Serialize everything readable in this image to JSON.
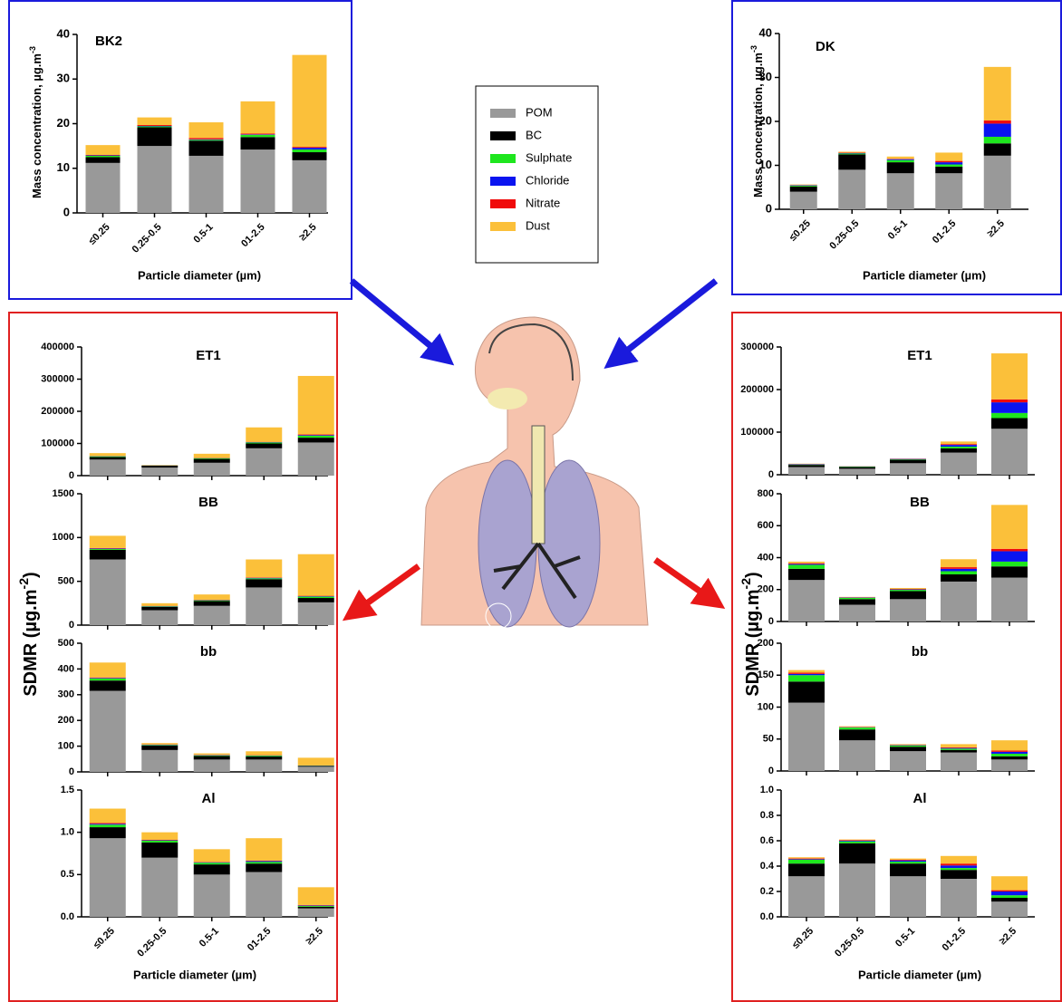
{
  "legend": [
    {
      "name": "POM",
      "color": "#999999"
    },
    {
      "name": "BC",
      "color": "#000000"
    },
    {
      "name": "Sulphate",
      "color": "#1ee61e"
    },
    {
      "name": "Chloride",
      "color": "#0a14f0"
    },
    {
      "name": "Nitrate",
      "color": "#f00a0a"
    },
    {
      "name": "Dust",
      "color": "#fbc03a"
    }
  ],
  "chart_data": [
    {
      "type": "bar",
      "stacked": true,
      "title": "BK2",
      "categories": [
        "≤0.25",
        "0.25-0.5",
        "0.5-1",
        "01-2.5",
        "≥2.5"
      ],
      "x_label": "Particle diameter (µm)",
      "y_label": {
        "text": "Mass concentration, µg.m",
        "sup": "-3"
      },
      "ylim": [
        0,
        40
      ],
      "yticks": [
        0,
        10,
        20,
        30,
        40
      ],
      "series": [
        {
          "values": [
            11.2,
            15,
            12.8,
            14.2,
            11.8
          ]
        },
        {
          "values": [
            1.3,
            4.2,
            3.4,
            2.8,
            1.8
          ]
        },
        {
          "values": [
            0.3,
            0.2,
            0.2,
            0.5,
            0.6
          ]
        },
        {
          "values": [
            0.1,
            0.1,
            0.1,
            0.1,
            0.4
          ]
        },
        {
          "values": [
            0.1,
            0.2,
            0.3,
            0.2,
            0.2
          ]
        },
        {
          "values": [
            2.2,
            1.7,
            3.5,
            7.2,
            20.6
          ]
        }
      ]
    },
    {
      "type": "bar",
      "stacked": true,
      "title": "DK",
      "categories": [
        "≤0.25",
        "0.25-0.5",
        "0.5-1",
        "01-2.5",
        "≥2.5"
      ],
      "x_label": "Particle diameter (µm)",
      "y_label": {
        "text": "Mass concentration, µg.m",
        "sup": "-3"
      },
      "ylim": [
        0,
        40
      ],
      "yticks": [
        0,
        10,
        20,
        30,
        40
      ],
      "series": [
        {
          "values": [
            4,
            9,
            8.2,
            8.2,
            12.2
          ]
        },
        {
          "values": [
            1.2,
            3.5,
            2.5,
            1.5,
            2.8
          ]
        },
        {
          "values": [
            0.2,
            0.2,
            0.5,
            0.5,
            1.5
          ]
        },
        {
          "values": [
            0.1,
            0.1,
            0.2,
            0.5,
            3
          ]
        },
        {
          "values": [
            0.05,
            0.1,
            0.1,
            0.3,
            0.7
          ]
        },
        {
          "values": [
            0.1,
            0.2,
            0.5,
            1.9,
            12.2
          ]
        }
      ]
    },
    {
      "type": "bar",
      "stacked": true,
      "title": "ET1",
      "ylim": [
        0,
        400000
      ],
      "yticks": [
        0,
        100000,
        200000,
        300000,
        400000
      ],
      "series": [
        {
          "values": [
            50000,
            25000,
            40000,
            85000,
            103000
          ]
        },
        {
          "values": [
            8000,
            6000,
            12000,
            15000,
            15000
          ]
        },
        {
          "values": [
            2000,
            500,
            2000,
            3000,
            6000
          ]
        },
        {
          "values": [
            500,
            300,
            500,
            1000,
            2000
          ]
        },
        {
          "values": [
            500,
            200,
            500,
            1000,
            2000
          ]
        },
        {
          "values": [
            9000,
            1000,
            13000,
            45000,
            182000
          ]
        }
      ]
    },
    {
      "type": "bar",
      "stacked": true,
      "title": "BB",
      "ylim": [
        0,
        1500
      ],
      "yticks": [
        0,
        500,
        1000,
        1500
      ],
      "series": [
        {
          "values": [
            750,
            170,
            220,
            430,
            260
          ]
        },
        {
          "values": [
            110,
            40,
            55,
            95,
            50
          ]
        },
        {
          "values": [
            10,
            5,
            8,
            10,
            15
          ]
        },
        {
          "values": [
            5,
            2,
            3,
            5,
            5
          ]
        },
        {
          "values": [
            5,
            3,
            4,
            5,
            5
          ]
        },
        {
          "values": [
            140,
            30,
            60,
            205,
            475
          ]
        }
      ]
    },
    {
      "type": "bar",
      "stacked": true,
      "title": "bb",
      "ylim": [
        0,
        500
      ],
      "yticks": [
        0,
        100,
        200,
        300,
        400,
        500
      ],
      "series": [
        {
          "values": [
            315,
            85,
            48,
            48,
            20
          ]
        },
        {
          "values": [
            40,
            18,
            14,
            12,
            3
          ]
        },
        {
          "values": [
            8,
            2,
            2,
            3,
            1
          ]
        },
        {
          "values": [
            2,
            1,
            1,
            1,
            0.5
          ]
        },
        {
          "values": [
            2,
            1,
            1,
            1,
            0.5
          ]
        },
        {
          "values": [
            58,
            5,
            6,
            15,
            30
          ]
        }
      ]
    },
    {
      "type": "bar",
      "stacked": true,
      "title": "Al",
      "categories": [
        "≤0.25",
        "0.25-0.5",
        "0.5-1",
        "01-2.5",
        "≥2.5"
      ],
      "x_label": "Particle diameter (µm)",
      "y_label": {
        "text": "SDMR (µg.m",
        "sup": "-2",
        "end": ")"
      },
      "ylim": [
        0,
        1.5
      ],
      "yticks": [
        {
          "value": 0,
          "label": "0.0"
        },
        0.5,
        {
          "value": 1,
          "label": "1.0"
        },
        1.5
      ],
      "series": [
        {
          "values": [
            0.93,
            0.7,
            0.5,
            0.53,
            0.1
          ]
        },
        {
          "values": [
            0.13,
            0.18,
            0.12,
            0.1,
            0.02
          ]
        },
        {
          "values": [
            0.03,
            0.02,
            0.02,
            0.02,
            0.01
          ]
        },
        {
          "values": [
            0.01,
            0.005,
            0.005,
            0.01,
            0.005
          ]
        },
        {
          "values": [
            0.01,
            0.005,
            0.005,
            0.005,
            0.005
          ]
        },
        {
          "values": [
            0.17,
            0.09,
            0.15,
            0.265,
            0.21
          ]
        }
      ]
    },
    {
      "type": "bar",
      "stacked": true,
      "title": "ET1",
      "ylim": [
        0,
        300000
      ],
      "yticks": [
        0,
        100000,
        200000,
        300000
      ],
      "series": [
        {
          "values": [
            18000,
            14000,
            27000,
            52000,
            108000
          ]
        },
        {
          "values": [
            5000,
            4000,
            8000,
            10000,
            25000
          ]
        },
        {
          "values": [
            1000,
            1000,
            1000,
            4000,
            12000
          ]
        },
        {
          "values": [
            1000,
            500,
            1000,
            4000,
            25000
          ]
        },
        {
          "values": [
            500,
            200,
            500,
            2000,
            7000
          ]
        },
        {
          "values": [
            500,
            300,
            500,
            6000,
            108000
          ]
        }
      ]
    },
    {
      "type": "bar",
      "stacked": true,
      "title": "BB",
      "ylim": [
        0,
        800
      ],
      "yticks": [
        0,
        200,
        400,
        600,
        800
      ],
      "series": [
        {
          "values": [
            260,
            105,
            140,
            250,
            275
          ]
        },
        {
          "values": [
            70,
            35,
            50,
            45,
            70
          ]
        },
        {
          "values": [
            25,
            8,
            8,
            20,
            30
          ]
        },
        {
          "values": [
            5,
            2,
            3,
            15,
            65
          ]
        },
        {
          "values": [
            5,
            2,
            3,
            10,
            15
          ]
        },
        {
          "values": [
            10,
            2,
            6,
            50,
            275
          ]
        }
      ]
    },
    {
      "type": "bar",
      "stacked": true,
      "title": "bb",
      "ylim": [
        0,
        200
      ],
      "yticks": [
        0,
        50,
        100,
        150,
        200
      ],
      "series": [
        {
          "values": [
            107,
            48,
            31,
            29,
            18
          ]
        },
        {
          "values": [
            33,
            17,
            7,
            4,
            5
          ]
        },
        {
          "values": [
            10,
            3,
            2,
            2,
            4
          ]
        },
        {
          "values": [
            2,
            0.5,
            0.5,
            1,
            3
          ]
        },
        {
          "values": [
            2,
            0.5,
            0.5,
            1,
            2
          ]
        },
        {
          "values": [
            4,
            1,
            1,
            5,
            16
          ]
        }
      ]
    },
    {
      "type": "bar",
      "stacked": true,
      "title": "Al",
      "categories": [
        "≤0.25",
        "0.25-0.5",
        "0.5-1",
        "01-2.5",
        "≥2.5"
      ],
      "x_label": "Particle diameter (µm)",
      "y_label": {
        "text": "SDMR (µg.m",
        "sup": "-2",
        "end": ")"
      },
      "ylim": [
        0,
        1
      ],
      "yticks": [
        {
          "value": 0,
          "label": "0.0"
        },
        0.2,
        0.4,
        0.6,
        0.8,
        {
          "value": 1,
          "label": "1.0"
        }
      ],
      "series": [
        {
          "values": [
            0.32,
            0.42,
            0.32,
            0.3,
            0.12
          ]
        },
        {
          "values": [
            0.1,
            0.16,
            0.1,
            0.07,
            0.03
          ]
        },
        {
          "values": [
            0.03,
            0.015,
            0.015,
            0.015,
            0.02
          ]
        },
        {
          "values": [
            0.005,
            0.005,
            0.01,
            0.02,
            0.03
          ]
        },
        {
          "values": [
            0.005,
            0.005,
            0.005,
            0.015,
            0.01
          ]
        },
        {
          "values": [
            0.01,
            0.005,
            0.01,
            0.06,
            0.11
          ]
        }
      ]
    }
  ]
}
